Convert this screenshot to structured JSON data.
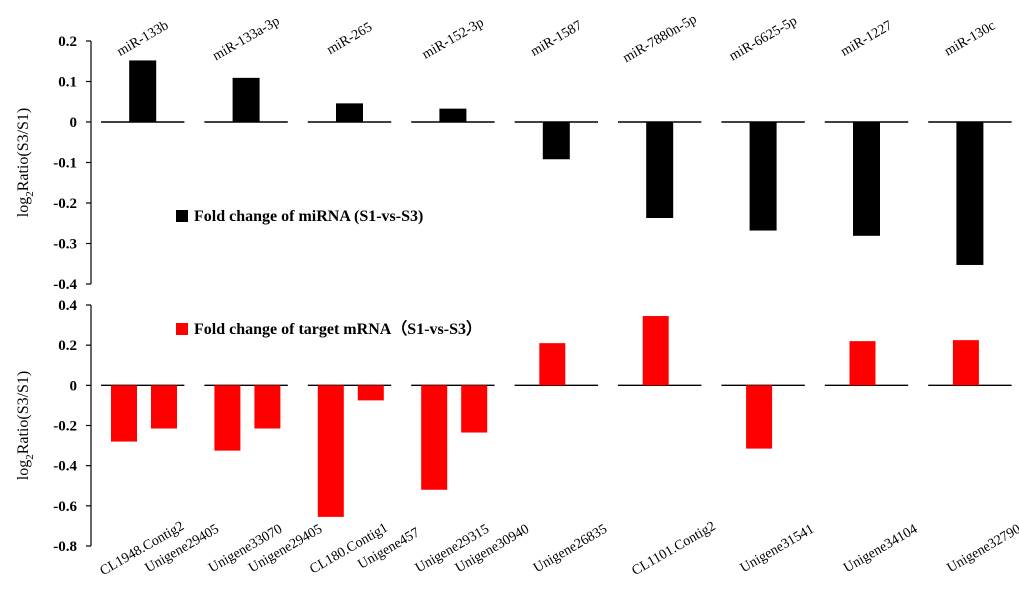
{
  "colors": {
    "mirna_bar": "#000000",
    "mrna_bar": "#ff0000",
    "baseline": "#000000"
  },
  "chart_data": [
    {
      "type": "bar",
      "panel": "top",
      "ylabel": "log2Ratio(S3/S1)",
      "ylim": [
        -0.4,
        0.2
      ],
      "yticks": [
        0.2,
        0.1,
        0,
        -0.1,
        -0.2,
        -0.3,
        -0.4
      ],
      "ytick_labels": [
        "0.2",
        "0.1",
        "0",
        "-0.1",
        "-0.2",
        "-0.3",
        "-0.4"
      ],
      "legend": "Fold change of miRNA (S1-vs-S3)",
      "groups": [
        {
          "label": "miR-133b",
          "value": 0.152
        },
        {
          "label": "miR-133a-3p",
          "value": 0.109
        },
        {
          "label": "miR-265",
          "value": 0.046
        },
        {
          "label": "miR-152-3p",
          "value": 0.033
        },
        {
          "label": "miR-1587",
          "value": -0.092
        },
        {
          "label": "miR-7880n-5p",
          "value": -0.237
        },
        {
          "label": "miR-6625-5p",
          "value": -0.268
        },
        {
          "label": "miR-1227",
          "value": -0.281
        },
        {
          "label": "miR-130c",
          "value": -0.353
        }
      ],
      "grid": false
    },
    {
      "type": "bar",
      "panel": "bottom",
      "ylabel": "log2Ratio(S3/S1)",
      "ylim": [
        -0.8,
        0.4
      ],
      "yticks": [
        0.4,
        0.2,
        0,
        -0.2,
        -0.4,
        -0.6,
        -0.8
      ],
      "ytick_labels": [
        "0.4",
        "0.2",
        "0",
        "-0.2",
        "-0.4",
        "-0.6",
        "-0.8"
      ],
      "legend": "Fold change of target mRNA（S1-vs-S3）",
      "groups": [
        {
          "targets": [
            {
              "label": "CL1948.Contig2",
              "value": -0.28
            },
            {
              "label": "Unigene29405",
              "value": -0.215
            }
          ]
        },
        {
          "targets": [
            {
              "label": "Unigene33070",
              "value": -0.325
            },
            {
              "label": "Unigene29405",
              "value": -0.215
            }
          ]
        },
        {
          "targets": [
            {
              "label": "CL180.Contig1",
              "value": -0.655
            },
            {
              "label": "Unigene457",
              "value": -0.075
            }
          ]
        },
        {
          "targets": [
            {
              "label": "Unigene29315",
              "value": -0.52
            },
            {
              "label": "Unigene30940",
              "value": -0.235
            }
          ]
        },
        {
          "targets": [
            {
              "label": "Unigene26835",
              "value": 0.21
            }
          ]
        },
        {
          "targets": [
            {
              "label": "CL1101.Contig2",
              "value": 0.345
            }
          ]
        },
        {
          "targets": [
            {
              "label": "Unigene31541",
              "value": -0.315
            }
          ]
        },
        {
          "targets": [
            {
              "label": "Unigene34104",
              "value": 0.22
            }
          ]
        },
        {
          "targets": [
            {
              "label": "Unigene32790",
              "value": 0.225
            }
          ]
        }
      ],
      "grid": false
    }
  ]
}
